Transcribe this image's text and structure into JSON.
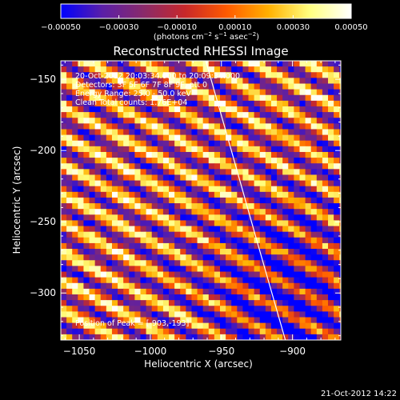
{
  "colorbar": {
    "ticks": [
      "−0.00050",
      "−0.00030",
      "−0.00010",
      "0.00010",
      "0.00030",
      "0.00050"
    ],
    "unit_label_main": "(photons cm",
    "unit_sup1": "−2",
    "unit_mid1": " s",
    "unit_sup2": "−1",
    "unit_mid2": " asec",
    "unit_sup3": "−2",
    "unit_end": ")",
    "range": [
      -0.0005,
      0.0005
    ],
    "colormap": [
      "#0000ff",
      "#5a1fa8",
      "#8a2a6a",
      "#c8282a",
      "#ff5a00",
      "#ffb000",
      "#ffff80",
      "#ffffff"
    ]
  },
  "chart_data": {
    "type": "heatmap",
    "title": "Reconstructed RHESSI Image",
    "xlabel": "Heliocentric X (arcsec)",
    "ylabel": "Heliocentric Y (arcsec)",
    "xlim": [
      -1063,
      -866
    ],
    "ylim": [
      -333,
      -137
    ],
    "x_ticks": [
      {
        "value": -1050,
        "label": "−1050"
      },
      {
        "value": -1000,
        "label": "−1000"
      },
      {
        "value": -950,
        "label": "−950"
      },
      {
        "value": -900,
        "label": "−900"
      }
    ],
    "y_ticks": [
      {
        "value": -150,
        "label": "−150"
      },
      {
        "value": -200,
        "label": "−200"
      },
      {
        "value": -250,
        "label": "−250"
      },
      {
        "value": -300,
        "label": "−300"
      }
    ],
    "annotations": [
      "20-Oct-2012 20:03:34.000 to 20:09:34.000",
      "Detectors: 3F 5F 6F 7F 8F 9F, att 0",
      "Energy Range: 25.0 - 50.0 keV",
      "Clean    Total counts: 1.76E+04"
    ],
    "peak_label": "Position of Peak = [-903,-193]",
    "peak_position": [
      -903,
      -193
    ],
    "limb_curve": [
      [
        -961,
        -137
      ],
      [
        -943,
        -200
      ],
      [
        -926,
        -260
      ],
      [
        -905,
        -333
      ]
    ],
    "pixel_size_arcsec": 4,
    "pattern": {
      "description": "diagonal fringe (grid-modulation) pattern",
      "stripe_period_arcsec": 18,
      "stripe_direction_deg": 62
    }
  },
  "footer": {
    "timestamp": "21-Oct-2012 14:22"
  }
}
